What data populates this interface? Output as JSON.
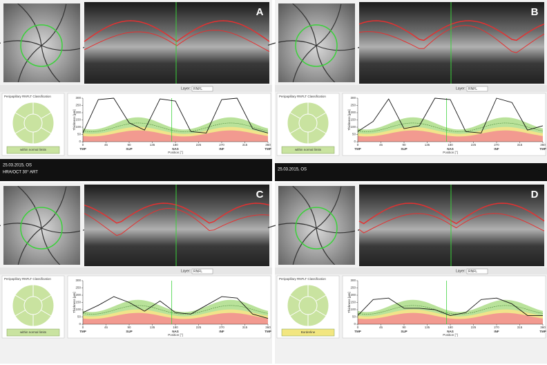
{
  "panels": [
    {
      "label": "A",
      "date": "25.03.2015, OS",
      "device": "HRA/OCT 30° ART",
      "classification_title": "Peripapillary RNFLT Classification",
      "status": "within normal limits",
      "layer_label": "Layer:",
      "layer": "RNFL",
      "ylabel": "Thickness [µm]",
      "xlabel": "Position [°]",
      "xlim": [
        0,
        360
      ],
      "ylim": [
        0,
        300
      ],
      "yticks": [
        0,
        50,
        100,
        150,
        200,
        250,
        300
      ],
      "xticks": [
        0,
        45,
        90,
        135,
        180,
        225,
        270,
        315,
        360
      ],
      "sectors": [
        "TMP",
        "SUP",
        "NAS",
        "INF",
        "TMP"
      ],
      "x": [
        0,
        30,
        60,
        90,
        120,
        150,
        180,
        210,
        240,
        270,
        300,
        330,
        360
      ],
      "values": [
        60,
        290,
        300,
        130,
        80,
        295,
        280,
        70,
        60,
        290,
        300,
        90,
        60
      ]
    },
    {
      "label": "B",
      "date": "25.03.2015, OS",
      "classification_title": "Peripapillary RNFLT Classification",
      "status": "within normal limits",
      "layer_label": "Layer:",
      "layer": "RNFL",
      "ylabel": "Thickness [µm]",
      "xlabel": "Position [°]",
      "xlim": [
        0,
        360
      ],
      "ylim": [
        0,
        300
      ],
      "yticks": [
        0,
        50,
        100,
        150,
        200,
        250,
        300
      ],
      "xticks": [
        0,
        45,
        90,
        135,
        180,
        225,
        270,
        315,
        360
      ],
      "sectors": [
        "TMP",
        "SUP",
        "NAS",
        "INF",
        "TMP"
      ],
      "x": [
        0,
        30,
        60,
        90,
        120,
        150,
        180,
        210,
        240,
        270,
        300,
        330,
        360
      ],
      "values": [
        70,
        140,
        295,
        90,
        110,
        300,
        290,
        70,
        60,
        300,
        270,
        80,
        110
      ]
    },
    {
      "label": "C",
      "classification_title": "Peripapillary RNFLT Classification",
      "status": "within normal limits",
      "layer_label": "Layer:",
      "layer": "RNFL",
      "ylabel": "Thickness [µm]",
      "xlabel": "Position [°]",
      "xlim": [
        0,
        360
      ],
      "ylim": [
        0,
        300
      ],
      "yticks": [
        0,
        50,
        100,
        150,
        200,
        250,
        300
      ],
      "xticks": [
        0,
        45,
        90,
        135,
        180,
        225,
        270,
        315,
        360
      ],
      "sectors": [
        "TMP",
        "SUP",
        "NAS",
        "INF",
        "TMP"
      ],
      "x": [
        0,
        30,
        60,
        90,
        120,
        150,
        180,
        210,
        240,
        270,
        300,
        330,
        360
      ],
      "values": [
        80,
        130,
        190,
        150,
        90,
        160,
        80,
        70,
        130,
        190,
        180,
        70,
        40
      ]
    },
    {
      "label": "D",
      "classification_title": "Peripapillary RNFLT Classification",
      "status": "Borderline",
      "layer_label": "Layer:",
      "layer": "RNFL",
      "ylabel": "Thickness [µm]",
      "xlabel": "Position [°]",
      "xlim": [
        0,
        360
      ],
      "ylim": [
        0,
        300
      ],
      "yticks": [
        0,
        50,
        100,
        150,
        200,
        250,
        300
      ],
      "xticks": [
        0,
        45,
        90,
        135,
        180,
        225,
        270,
        315,
        360
      ],
      "sectors": [
        "TMP",
        "SUP",
        "NAS",
        "INF",
        "TMP"
      ],
      "x": [
        0,
        30,
        60,
        90,
        120,
        150,
        180,
        210,
        240,
        270,
        300,
        330,
        360
      ],
      "values": [
        60,
        170,
        180,
        110,
        110,
        100,
        60,
        80,
        170,
        180,
        140,
        60,
        60
      ]
    }
  ]
}
